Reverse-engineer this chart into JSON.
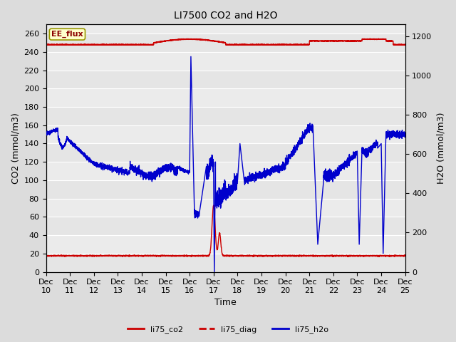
{
  "title": "LI7500 CO2 and H2O",
  "xlabel": "Time",
  "ylabel_left": "CO2 (mmol/m3)",
  "ylabel_right": "H2O (mmol/m3)",
  "ylim_left": [
    0,
    270
  ],
  "ylim_right": [
    0,
    1260
  ],
  "xtick_labels": [
    "Dec 10",
    "Dec 11",
    "Dec 12",
    "Dec 13",
    "Dec 14",
    "Dec 15",
    "Dec 16",
    "Dec 17",
    "Dec 18",
    "Dec 19",
    "Dec 20",
    "Dec 21",
    "Dec 22",
    "Dec 23",
    "Dec 24",
    "Dec 25"
  ],
  "annotation_text": "EE_flux",
  "annotation_color": "#8B0000",
  "annotation_bg": "#FFFFCC",
  "line_co2_color": "#CC0000",
  "line_diag_color": "#CC0000",
  "line_h2o_color": "#0000CC",
  "bg_color": "#DCDCDC",
  "plot_bg_color": "#EBEBEB",
  "grid_color": "#FFFFFF",
  "legend_labels": [
    "li75_co2",
    "li75_diag",
    "li75_h2o"
  ],
  "legend_colors": [
    "#CC0000",
    "#CC0000",
    "#0000CC"
  ],
  "yticks_left": [
    0,
    20,
    40,
    60,
    80,
    100,
    120,
    140,
    160,
    180,
    200,
    220,
    240,
    260
  ],
  "yticks_right": [
    0,
    200,
    400,
    600,
    800,
    1000,
    1200
  ],
  "h2o_scale": 4.666666
}
